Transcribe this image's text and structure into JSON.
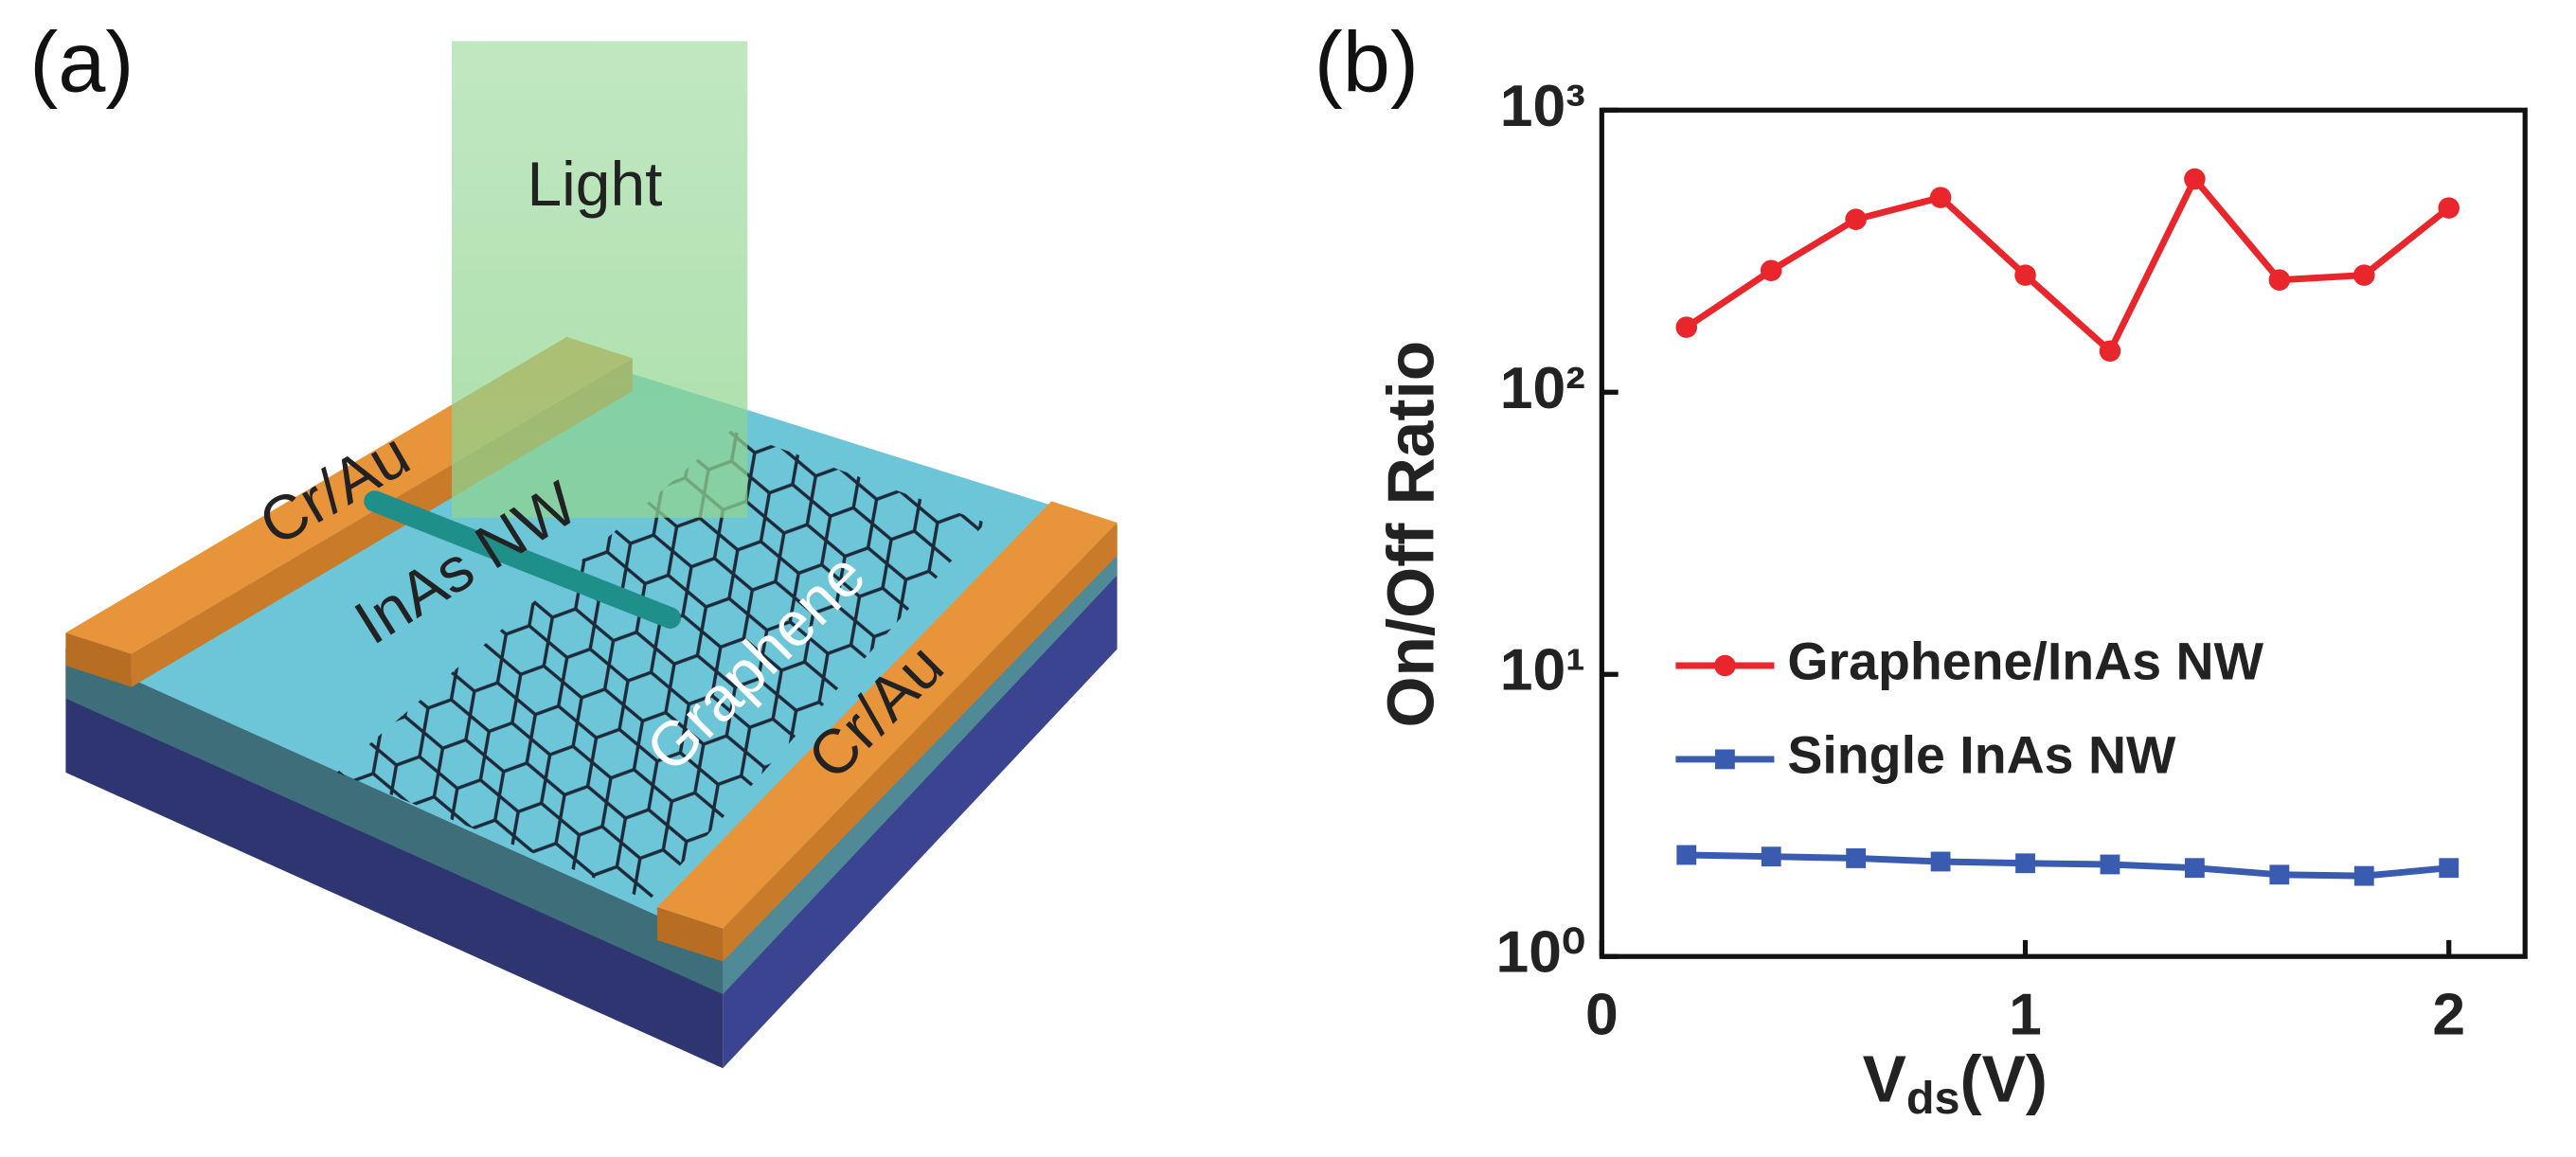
{
  "panels": [
    "(a)",
    "(b)"
  ],
  "diagram": {
    "light": "Light",
    "electrode_left": "Cr/Au",
    "electrode_right": "Cr/Au",
    "nanowire": "InAs NW",
    "graphene": "Graphene"
  },
  "chart_data": {
    "type": "line",
    "x_label": [
      "V",
      "ds",
      "(V)"
    ],
    "y_label": "On/Off Ratio",
    "x": [
      0.2,
      0.4,
      0.6,
      0.8,
      1.0,
      1.2,
      1.4,
      1.6,
      1.8,
      2.0
    ],
    "series": [
      {
        "name": "Graphene/InAs NW",
        "color": "#e8262c",
        "marker": "circle",
        "values": [
          170,
          270,
          410,
          490,
          260,
          140,
          570,
          250,
          260,
          450
        ]
      },
      {
        "name": "Single InAs NW",
        "color": "#3a5cb0",
        "marker": "square",
        "values": [
          2.29,
          2.26,
          2.23,
          2.17,
          2.14,
          2.12,
          2.06,
          1.95,
          1.93,
          2.06
        ]
      }
    ],
    "xlim": [
      0,
      2.18
    ],
    "xticks": [
      0,
      1,
      2
    ],
    "ylim": [
      1,
      1000
    ],
    "log_y": true,
    "yticks": [
      {
        "value": 1,
        "label": "10⁰"
      },
      {
        "value": 10,
        "label": "10¹"
      },
      {
        "value": 100,
        "label": "10²"
      },
      {
        "value": 1000,
        "label": "10³"
      }
    ],
    "legend": "lower left",
    "grid": false
  }
}
